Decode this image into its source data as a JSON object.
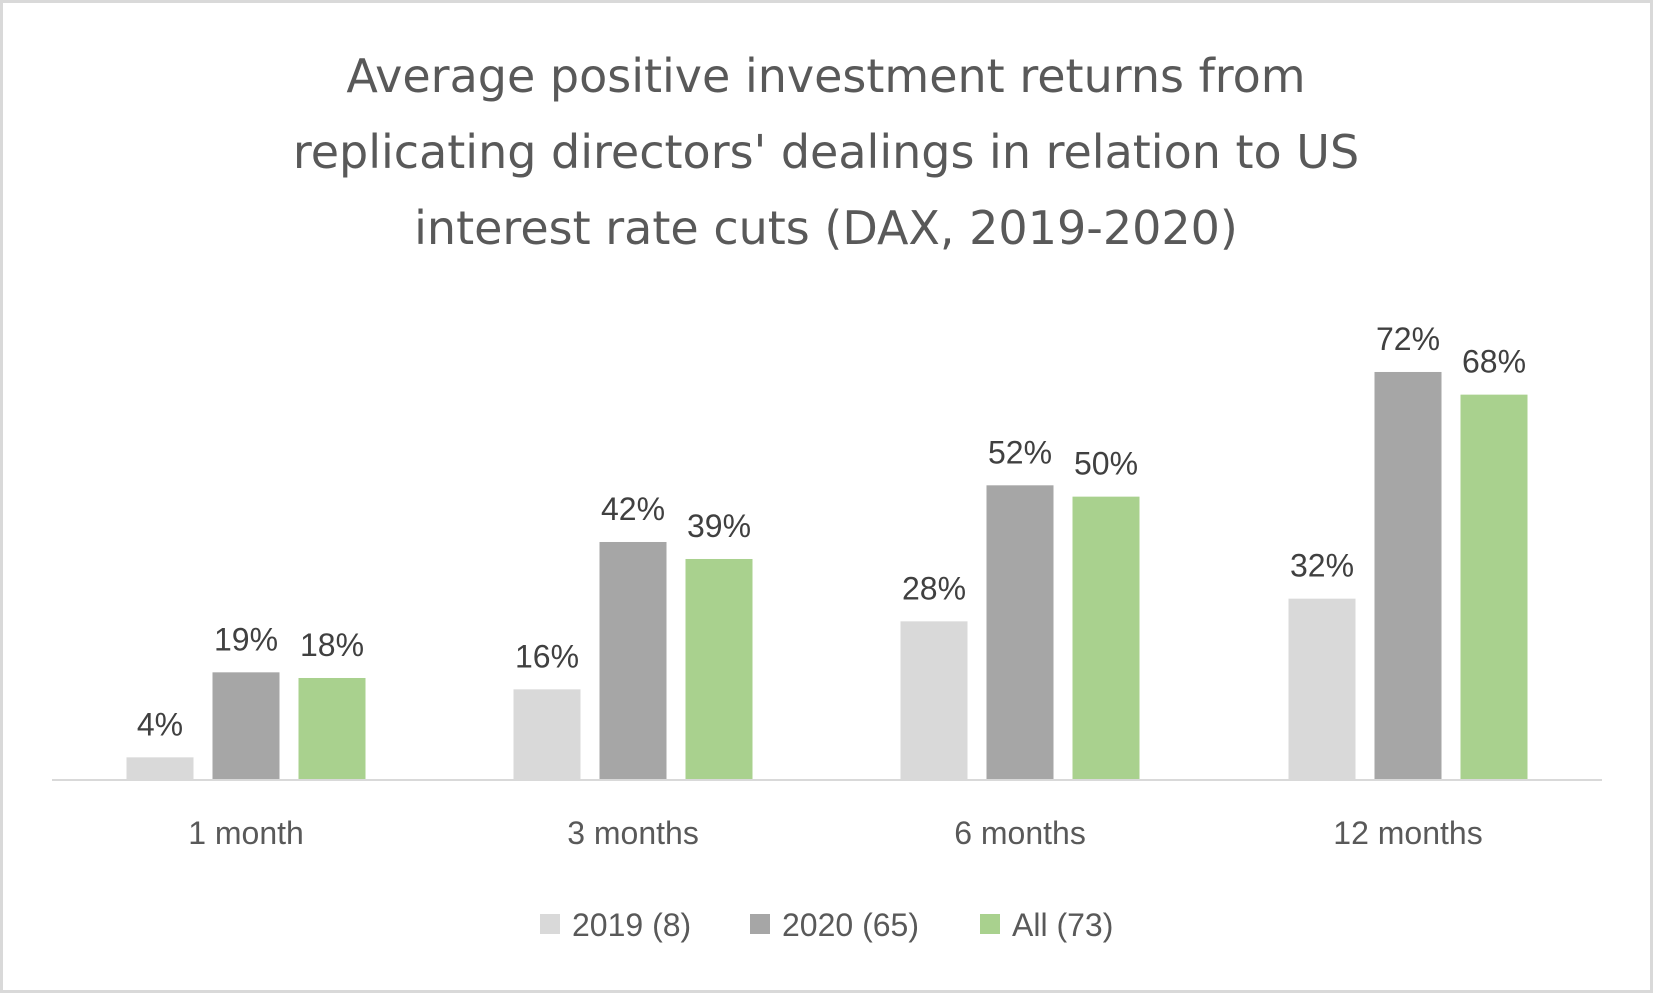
{
  "chart_data": {
    "type": "bar",
    "title": "Average positive investment returns from replicating directors' dealings in relation to US interest rate cuts (DAX, 2019-2020)",
    "title_lines": [
      "Average positive investment returns from",
      "replicating directors' dealings in relation to US",
      "interest rate cuts (DAX, 2019-2020)"
    ],
    "categories": [
      "1 month",
      "3 months",
      "6 months",
      "12 months"
    ],
    "series": [
      {
        "name": "2019 (8)",
        "color": "#d9d9d9",
        "values": [
          4,
          16,
          28,
          32
        ]
      },
      {
        "name": "2020 (65)",
        "color": "#a6a6a6",
        "values": [
          19,
          42,
          52,
          72
        ]
      },
      {
        "name": "All (73)",
        "color": "#a9d18e",
        "values": [
          18,
          39,
          50,
          68
        ]
      }
    ],
    "value_suffix": "%",
    "xlabel": "",
    "ylabel": "",
    "ylim": [
      0,
      80
    ],
    "grid": false,
    "legend": "bottom"
  }
}
